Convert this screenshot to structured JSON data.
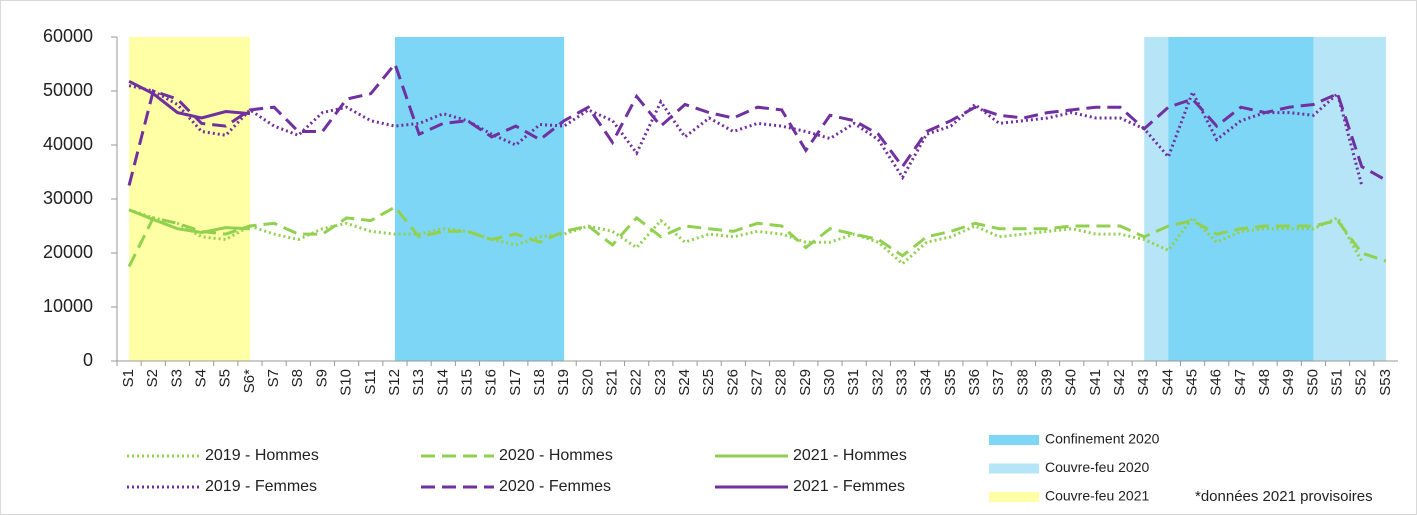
{
  "chart_data": {
    "type": "line",
    "categories": [
      "S1",
      "S2",
      "S3",
      "S4",
      "S5",
      "S6*",
      "S7",
      "S8",
      "S9",
      "S10",
      "S11",
      "S12",
      "S13",
      "S14",
      "S15",
      "S16",
      "S17",
      "S18",
      "S19",
      "S20",
      "S21",
      "S22",
      "S23",
      "S24",
      "S25",
      "S26",
      "S27",
      "S28",
      "S29",
      "S30",
      "S31",
      "S32",
      "S33",
      "S34",
      "S35",
      "S36",
      "S37",
      "S38",
      "S39",
      "S40",
      "S41",
      "S42",
      "S43",
      "S44",
      "S45",
      "S46",
      "S47",
      "S48",
      "S49",
      "S50",
      "S51",
      "S52",
      "S53"
    ],
    "ylim": [
      0,
      60000
    ],
    "yticks": [
      0,
      10000,
      20000,
      30000,
      40000,
      50000,
      60000
    ],
    "grid": false,
    "series": [
      {
        "name": "2019 - Hommes",
        "color": "#92d050",
        "dash": "dotted",
        "values": [
          28000,
          26500,
          25500,
          23000,
          22500,
          25000,
          23500,
          22500,
          24500,
          25500,
          24000,
          23500,
          23500,
          24500,
          24000,
          22500,
          21500,
          23000,
          23500,
          25000,
          24000,
          21000,
          26000,
          22000,
          23500,
          23000,
          24000,
          23500,
          22000,
          22000,
          23500,
          22000,
          18000,
          22000,
          23000,
          25000,
          23000,
          23500,
          24000,
          24500,
          23500,
          23500,
          22500,
          20500,
          26500,
          22000,
          24000,
          24500,
          24500,
          24500,
          26500,
          18500,
          null
        ]
      },
      {
        "name": "2019 - Femmes",
        "color": "#7030a0",
        "dash": "dotted",
        "values": [
          51000,
          50000,
          47500,
          42500,
          41800,
          46500,
          43500,
          41800,
          46000,
          47000,
          44500,
          43500,
          44000,
          45800,
          44500,
          42000,
          40000,
          43800,
          43500,
          46500,
          44500,
          38500,
          48000,
          41500,
          45000,
          42500,
          44000,
          43500,
          42500,
          41200,
          44000,
          41000,
          34000,
          42000,
          43500,
          47500,
          44000,
          44500,
          45000,
          46000,
          45000,
          45000,
          43000,
          37800,
          49800,
          41000,
          44500,
          46000,
          46000,
          45500,
          49500,
          32500,
          null
        ]
      },
      {
        "name": "2020 - Hommes",
        "color": "#92d050",
        "dash": "dashed",
        "values": [
          17500,
          26500,
          25500,
          24000,
          23500,
          25000,
          25500,
          23500,
          23500,
          26500,
          26000,
          28500,
          23000,
          24000,
          24000,
          22500,
          23500,
          22000,
          24000,
          25000,
          21500,
          26500,
          23000,
          25000,
          24500,
          24000,
          25500,
          25000,
          21000,
          24500,
          23500,
          22500,
          19500,
          23000,
          24000,
          25500,
          24500,
          24500,
          24500,
          25000,
          25000,
          25000,
          23000,
          25000,
          26000,
          23500,
          24500,
          25000,
          25000,
          25000,
          26000,
          20000,
          18500
        ]
      },
      {
        "name": "2020 - Femmes",
        "color": "#7030a0",
        "dash": "dashed",
        "values": [
          32500,
          50000,
          48500,
          44000,
          43500,
          46500,
          47000,
          42500,
          42500,
          48500,
          49500,
          55000,
          42000,
          44000,
          44500,
          41500,
          43500,
          41000,
          44500,
          47000,
          40500,
          49000,
          43500,
          47500,
          46000,
          45000,
          47000,
          46500,
          39000,
          45500,
          44500,
          42000,
          36000,
          42500,
          44500,
          47000,
          45500,
          45000,
          46000,
          46500,
          47000,
          47000,
          43000,
          47000,
          48500,
          43500,
          47000,
          46000,
          47000,
          47500,
          49500,
          36000,
          33500
        ]
      },
      {
        "name": "2021 - Hommes",
        "color": "#92d050",
        "dash": "solid",
        "values": [
          28000,
          26200,
          24500,
          23800,
          24700,
          24500,
          null,
          null,
          null,
          null,
          null,
          null,
          null,
          null,
          null,
          null,
          null,
          null,
          null,
          null,
          null,
          null,
          null,
          null,
          null,
          null,
          null,
          null,
          null,
          null,
          null,
          null,
          null,
          null,
          null,
          null,
          null,
          null,
          null,
          null,
          null,
          null,
          null,
          null,
          null,
          null,
          null,
          null,
          null,
          null,
          null,
          null,
          null
        ]
      },
      {
        "name": "2021 - Femmes",
        "color": "#7030a0",
        "dash": "solid",
        "values": [
          51800,
          49500,
          46000,
          45000,
          46200,
          45800,
          null,
          null,
          null,
          null,
          null,
          null,
          null,
          null,
          null,
          null,
          null,
          null,
          null,
          null,
          null,
          null,
          null,
          null,
          null,
          null,
          null,
          null,
          null,
          null,
          null,
          null,
          null,
          null,
          null,
          null,
          null,
          null,
          null,
          null,
          null,
          null,
          null,
          null,
          null,
          null,
          null,
          null,
          null,
          null,
          null,
          null,
          null
        ]
      }
    ],
    "bands": [
      {
        "name": "Confinement 2020",
        "color": "#7dd6f5",
        "spans": [
          [
            "S12",
            "S19"
          ],
          [
            "S44",
            "S50"
          ]
        ]
      },
      {
        "name": "Couvre-feu 2020",
        "color": "#b6e5f8",
        "spans": [
          [
            "S43",
            "S53"
          ]
        ]
      },
      {
        "name": "Couvre-feu 2021",
        "color": "#ffffa6",
        "spans": [
          [
            "S1",
            "S6*"
          ]
        ]
      }
    ],
    "note": "*données 2021 provisoires"
  }
}
